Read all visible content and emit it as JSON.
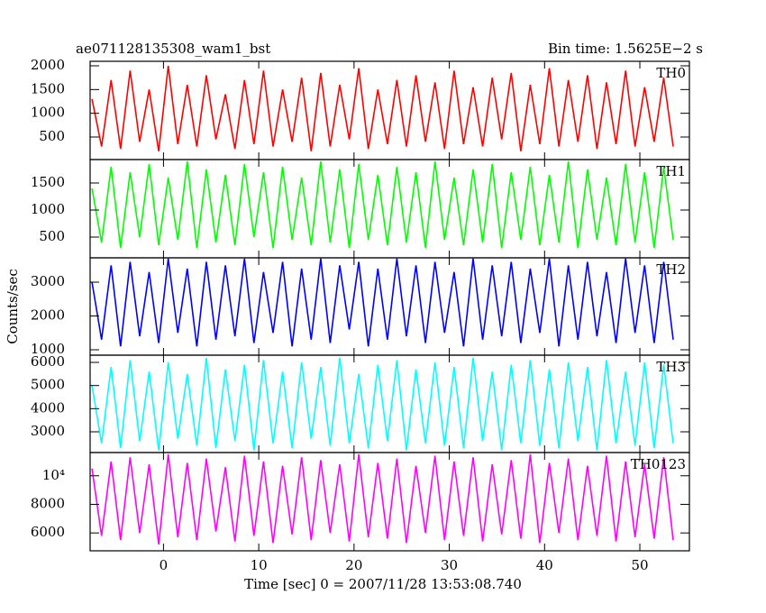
{
  "title": "ae071128135308_wam1_bst",
  "bin_time": "Bin time: 1.5625E−2 s",
  "ylabel": "Counts/sec",
  "xlabel": "Time [sec] 0 = 2007/11/28 13:53:08.740",
  "xlim": [
    -7.7,
    55.2
  ],
  "xticks": [
    0,
    10,
    20,
    30,
    40,
    50
  ],
  "x": [
    -7.5,
    -6.5,
    -5.5,
    -4.5,
    -3.5,
    -2.5,
    -1.5,
    -0.5,
    0.5,
    1.5,
    2.5,
    3.5,
    4.5,
    5.5,
    6.5,
    7.5,
    8.5,
    9.5,
    10.5,
    11.5,
    12.5,
    13.5,
    14.5,
    15.5,
    16.5,
    17.5,
    18.5,
    19.5,
    20.5,
    21.5,
    22.5,
    23.5,
    24.5,
    25.5,
    26.5,
    27.5,
    28.5,
    29.5,
    30.5,
    31.5,
    32.5,
    33.5,
    34.5,
    35.5,
    36.5,
    37.5,
    38.5,
    39.5,
    40.5,
    41.5,
    42.5,
    43.5,
    44.5,
    45.5,
    46.5,
    47.5,
    48.5,
    49.5,
    50.5,
    51.5,
    52.5,
    53.5
  ],
  "chart_data": [
    {
      "type": "line",
      "ylim": [
        25,
        2095
      ],
      "yticks": [
        500,
        1000,
        1500,
        2000
      ],
      "series": [
        {
          "name": "TH0",
          "color": "#ff0000",
          "values": [
            1300,
            300,
            1700,
            250,
            1900,
            400,
            1500,
            200,
            2000,
            350,
            1600,
            300,
            1800,
            450,
            1400,
            250,
            1700,
            350,
            1900,
            300,
            1500,
            400,
            1750,
            200,
            1850,
            300,
            1600,
            450,
            1950,
            250,
            1500,
            350,
            1700,
            300,
            1800,
            400,
            1650,
            250,
            1900,
            350,
            1550,
            300,
            1750,
            450,
            1850,
            200,
            1600,
            350,
            1950,
            300,
            1700,
            400,
            1800,
            250,
            1650,
            350,
            1900,
            300,
            1550,
            400,
            1750,
            300
          ]
        }
      ]
    },
    {
      "type": "line",
      "ylim": [
        117,
        1933
      ],
      "yticks": [
        500,
        1000,
        1500
      ],
      "series": [
        {
          "name": "TH1",
          "color": "#00ff00",
          "values": [
            1400,
            400,
            1800,
            300,
            1700,
            500,
            1850,
            350,
            1600,
            450,
            1900,
            300,
            1750,
            400,
            1650,
            350,
            1850,
            500,
            1700,
            300,
            1800,
            450,
            1600,
            350,
            1900,
            400,
            1750,
            300,
            1850,
            450,
            1650,
            350,
            1800,
            400,
            1700,
            300,
            1900,
            450,
            1600,
            350,
            1750,
            400,
            1850,
            300,
            1700,
            450,
            1800,
            350,
            1650,
            400,
            1900,
            300,
            1750,
            450,
            1600,
            350,
            1850,
            400,
            1700,
            300,
            1800,
            450
          ]
        }
      ]
    },
    {
      "type": "line",
      "ylim": [
        840,
        3720
      ],
      "yticks": [
        1000,
        2000,
        3000
      ],
      "series": [
        {
          "name": "TH2",
          "color": "#0000ff",
          "values": [
            3000,
            1300,
            3500,
            1100,
            3600,
            1400,
            3300,
            1200,
            3700,
            1500,
            3400,
            1100,
            3600,
            1300,
            3500,
            1400,
            3700,
            1200,
            3300,
            1500,
            3600,
            1100,
            3400,
            1300,
            3700,
            1200,
            3500,
            1600,
            3600,
            1100,
            3400,
            1300,
            3700,
            1400,
            3500,
            1200,
            3600,
            1500,
            3300,
            1100,
            3700,
            1300,
            3500,
            1400,
            3600,
            1200,
            3400,
            1500,
            3700,
            1100,
            3500,
            1300,
            3600,
            1400,
            3300,
            1200,
            3700,
            1500,
            3500,
            1200,
            3600,
            1300
          ]
        }
      ]
    },
    {
      "type": "line",
      "ylim": [
        2104,
        6312
      ],
      "yticks": [
        3000,
        4000,
        5000,
        6000
      ],
      "series": [
        {
          "name": "TH3",
          "color": "#00ffff",
          "values": [
            5000,
            2500,
            5800,
            2300,
            6100,
            2600,
            5600,
            2200,
            6000,
            2700,
            5500,
            2400,
            6200,
            2300,
            5700,
            2600,
            5900,
            2200,
            6100,
            2500,
            5600,
            2300,
            6000,
            2700,
            5800,
            2400,
            6200,
            2500,
            5500,
            2300,
            5900,
            2600,
            6100,
            2200,
            5700,
            2500,
            6000,
            2400,
            5800,
            2300,
            6200,
            2600,
            5600,
            2200,
            5900,
            2500,
            6100,
            2400,
            5700,
            2300,
            6000,
            2600,
            5800,
            2200,
            6100,
            2500,
            5600,
            2400,
            6000,
            2300,
            5900,
            2500
          ]
        }
      ]
    },
    {
      "type": "line",
      "ylim": [
        4750,
        11625
      ],
      "yticks": [
        6000,
        8000,
        {
          "value": 10000,
          "label": "10⁴"
        }
      ],
      "series": [
        {
          "name": "TH0123",
          "color": "#ff00ff",
          "values": [
            10500,
            5800,
            11000,
            5500,
            11300,
            6000,
            10800,
            5200,
            11500,
            5700,
            10900,
            5500,
            11200,
            6100,
            10600,
            5400,
            11400,
            5800,
            11000,
            5300,
            10700,
            5900,
            11300,
            5500,
            11100,
            6000,
            10800,
            5400,
            11500,
            5700,
            10900,
            5600,
            11200,
            5300,
            10700,
            6000,
            11400,
            5500,
            11000,
            5800,
            11300,
            5400,
            10800,
            5900,
            11100,
            5600,
            11500,
            5300,
            10900,
            6000,
            11200,
            5500,
            10700,
            5800,
            11400,
            5400,
            11000,
            5700,
            10800,
            5600,
            11300,
            5500
          ]
        }
      ]
    }
  ]
}
